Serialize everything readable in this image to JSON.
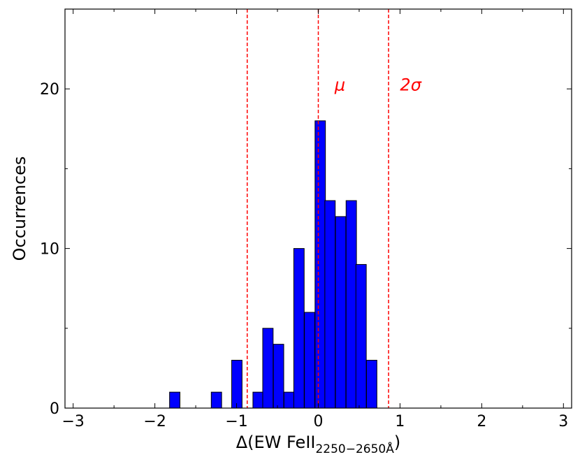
{
  "chart_data": {
    "type": "bar",
    "subtype": "histogram",
    "title": "",
    "xlabel": "Δ(EW FeII",
    "xlabel_sub": "2250−2650Å",
    "xlabel_close": ")",
    "ylabel": "Occurrences",
    "xlim": [
      -3.1,
      3.1
    ],
    "ylim": [
      0,
      25
    ],
    "x_ticks": [
      -3,
      -2,
      -1,
      0,
      1,
      2,
      3
    ],
    "x_tick_labels": [
      "−3",
      "−2",
      "−1",
      "0",
      "1",
      "2",
      "3"
    ],
    "y_ticks": [
      0,
      10,
      20
    ],
    "y_tick_labels": [
      "0",
      "10",
      "20"
    ],
    "bin_width": 0.127,
    "bar_color": "#0000ff",
    "bar_edge_color": "#000000",
    "series": [
      {
        "bins": [
          {
            "x0": -1.82,
            "count": 1
          },
          {
            "x0": -1.31,
            "count": 1
          },
          {
            "x0": -1.06,
            "count": 3
          },
          {
            "x0": -0.8,
            "count": 1
          },
          {
            "x0": -0.68,
            "count": 5
          },
          {
            "x0": -0.55,
            "count": 4
          },
          {
            "x0": -0.42,
            "count": 1
          },
          {
            "x0": -0.3,
            "count": 10
          },
          {
            "x0": -0.17,
            "count": 6
          },
          {
            "x0": -0.04,
            "count": 18
          },
          {
            "x0": 0.08,
            "count": 13
          },
          {
            "x0": 0.21,
            "count": 12
          },
          {
            "x0": 0.34,
            "count": 13
          },
          {
            "x0": 0.46,
            "count": 9
          },
          {
            "x0": 0.59,
            "count": 3
          }
        ]
      }
    ],
    "reference_lines": [
      {
        "x": -0.87,
        "color": "#ff0000",
        "style": "dashed",
        "label": ""
      },
      {
        "x": 0.0,
        "color": "#ff0000",
        "style": "dashed",
        "label": "μ"
      },
      {
        "x": 0.86,
        "color": "#ff0000",
        "style": "dashed",
        "label": "2σ"
      }
    ],
    "grid": false,
    "legend": "none"
  }
}
